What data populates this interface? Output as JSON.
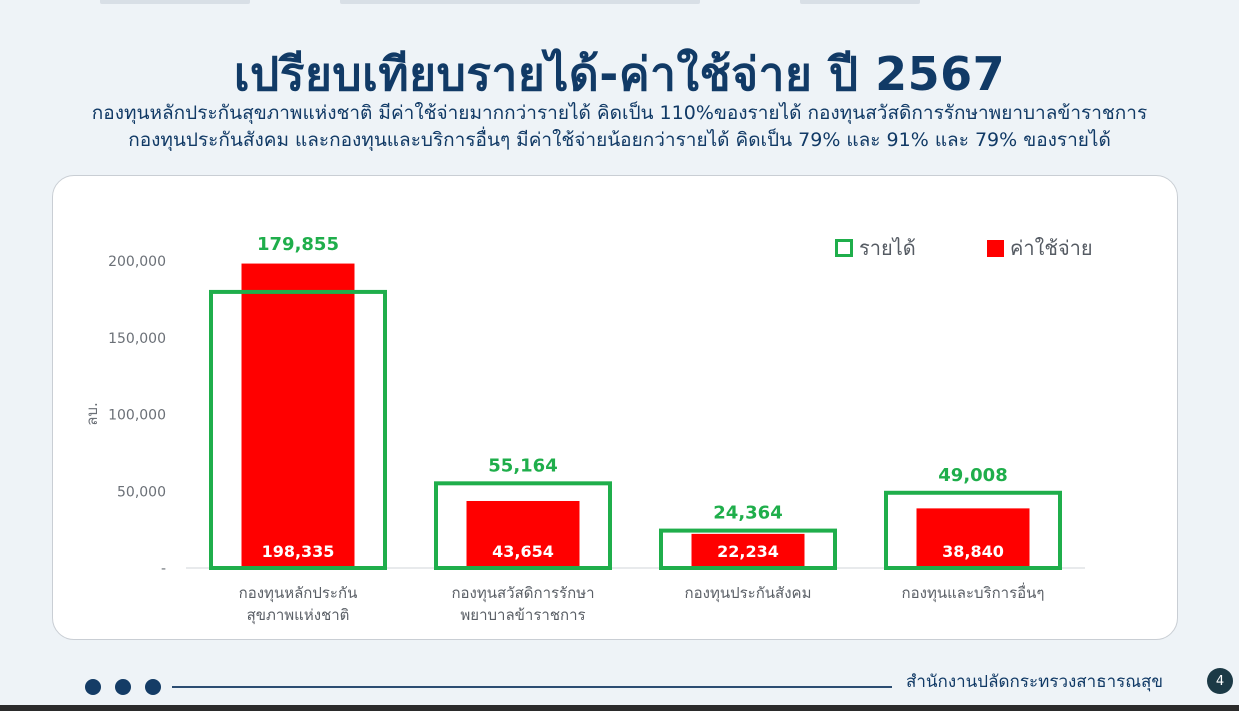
{
  "slide": {
    "title": "เปรียบเทียบรายได้-ค่าใช้จ่าย ปี 2567",
    "subtitle_line1": "กองทุนหลักประกันสุขภาพแห่งชาติ มีค่าใช้จ่ายมากกว่ารายได้ คิดเป็น 110%ของรายได้ กองทุนสวัสดิการรักษาพยาบาลข้าราชการ",
    "subtitle_line2": "กองทุนประกันสังคม และกองทุนและบริการอื่นๆ มีค่าใช้จ่ายน้อยกว่ารายได้ คิดเป็น 79% และ 91% และ 79% ของรายได้"
  },
  "chart_data": {
    "type": "bar",
    "title": "",
    "ylabel": "ลบ.",
    "xlabel": "",
    "ylim": [
      0,
      200000
    ],
    "y_ticks": [
      0,
      50000,
      100000,
      150000,
      200000
    ],
    "y_tick_labels": [
      "-",
      "50,000",
      "100,000",
      "150,000",
      "200,000"
    ],
    "grid": false,
    "legend_position": "top-right",
    "categories": [
      [
        "กองทุนหลักประกัน",
        "สุขภาพแห่งชาติ"
      ],
      [
        "กองทุนสวัสดิการรักษา",
        "พยาบาลข้าราชการ"
      ],
      [
        "กองทุนประกันสังคม"
      ],
      [
        "กองทุนและบริการอื่นๆ"
      ]
    ],
    "series": [
      {
        "name": "รายได้",
        "style": "outline",
        "color": "#1fae4b",
        "values": [
          179855,
          55164,
          24364,
          49008
        ],
        "labels": [
          "179,855",
          "55,164",
          "24,364",
          "49,008"
        ]
      },
      {
        "name": "ค่าใช้จ่าย",
        "style": "filled",
        "color": "#ff0000",
        "values": [
          198335,
          43654,
          22234,
          38840
        ],
        "labels": [
          "198,335",
          "43,654",
          "22,234",
          "38,840"
        ]
      }
    ]
  },
  "footer": {
    "organization": "สำนักงานปลัดกระทรวงสาธารณสุข",
    "page_number": "4"
  }
}
